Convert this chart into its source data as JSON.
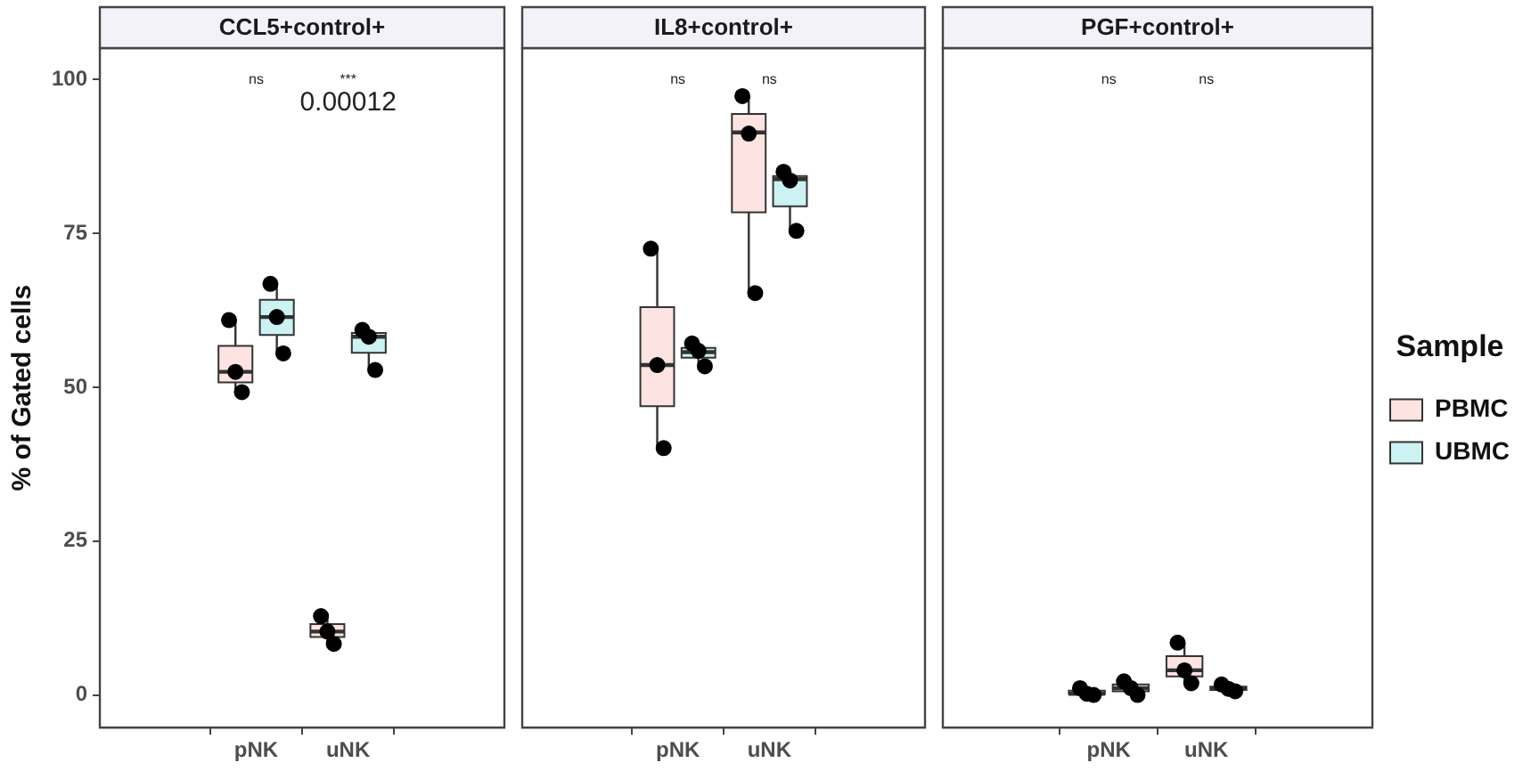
{
  "chart_data": [
    {
      "type": "box",
      "title": "CCL5+control+",
      "ylabel": "% of Gated cells",
      "categories": [
        "pNK",
        "uNK"
      ],
      "ylim": [
        -5.3,
        105.1
      ],
      "yticks": [
        0,
        25,
        50,
        75,
        100
      ],
      "grid": false,
      "marker": "circle",
      "annotations": [
        "ns",
        "***",
        "0.00012"
      ],
      "series": [
        {
          "color": "#fde3e1",
          "boxes": [
            {
              "low": 49.2,
              "q1": 50.8,
              "median": 52.5,
              "q3": 56.7,
              "high": 60.9
            },
            {
              "low": 8.3,
              "q1": 9.4,
              "median": 10.3,
              "q3": 11.5,
              "high": 12.8
            }
          ]
        },
        {
          "color": "#ccf2f3",
          "boxes": [
            {
              "low": 55.5,
              "q1": 58.5,
              "median": 61.4,
              "q3": 64.2,
              "high": 66.8
            },
            {
              "low": 52.8,
              "q1": 55.6,
              "median": 58.2,
              "q3": 58.8,
              "high": 59.3
            }
          ]
        },
        {
          "type": "scatter",
          "color": "#000000",
          "x": [
            "pNK",
            "pNK",
            "pNK",
            "uNK",
            "uNK",
            "uNK"
          ],
          "values": [
            60.9,
            52.5,
            49.2,
            12.8,
            10.3,
            8.3
          ]
        },
        {
          "type": "scatter",
          "color": "#000000",
          "x": [
            "pNK",
            "pNK",
            "pNK",
            "uNK",
            "uNK",
            "uNK"
          ],
          "values": [
            66.8,
            61.4,
            55.5,
            59.3,
            58.2,
            52.8
          ]
        }
      ]
    },
    {
      "type": "box",
      "title": "IL8+control+",
      "categories": [
        "pNK",
        "uNK"
      ],
      "ylim": [
        -5.3,
        105.1
      ],
      "yticks": [
        0,
        25,
        50,
        75,
        100
      ],
      "tick_labels": "x",
      "grid": false,
      "marker": "circle",
      "annotations": [
        "ns",
        "ns"
      ],
      "series": [
        {
          "color": "#fde3e1",
          "boxes": [
            {
              "low": 40.1,
              "q1": 46.9,
              "median": 53.6,
              "q3": 63.0,
              "high": 72.5
            },
            {
              "low": 65.3,
              "q1": 78.4,
              "median": 91.4,
              "q3": 94.4,
              "high": 97.3
            }
          ]
        },
        {
          "color": "#ccf2f3",
          "boxes": [
            {
              "low": 53.4,
              "q1": 54.8,
              "median": 55.7,
              "q3": 56.4,
              "high": 57.1
            },
            {
              "low": 75.4,
              "q1": 79.4,
              "median": 83.8,
              "q3": 84.3,
              "high": 85.0
            }
          ]
        },
        {
          "type": "scatter",
          "color": "#000000",
          "x": [
            "pNK",
            "pNK",
            "pNK",
            "uNK",
            "uNK",
            "uNK"
          ],
          "values": [
            72.5,
            53.6,
            40.1,
            97.3,
            91.2,
            65.3
          ]
        },
        {
          "type": "scatter",
          "color": "#000000",
          "x": [
            "pNK",
            "pNK",
            "pNK",
            "uNK",
            "uNK",
            "uNK"
          ],
          "values": [
            57.1,
            55.9,
            53.4,
            85.0,
            83.6,
            75.4
          ]
        }
      ]
    },
    {
      "type": "box",
      "title": "PGF+control+",
      "categories": [
        "pNK",
        "uNK"
      ],
      "ylim": [
        -5.3,
        105.1
      ],
      "yticks": [
        0,
        25,
        50,
        75,
        100
      ],
      "tick_labels": "x",
      "grid": false,
      "marker": "circle",
      "legend": "right",
      "legend_title": "Sample",
      "annotations": [
        "ns",
        "ns"
      ],
      "series": [
        {
          "name": "PBMC",
          "color": "#fde3e1",
          "boxes": [
            {
              "low": 0,
              "q1": 0.1,
              "median": 0.2,
              "q3": 0.7,
              "high": 1.1
            },
            {
              "low": 1.9,
              "q1": 3.0,
              "median": 4.0,
              "q3": 6.3,
              "high": 8.5
            }
          ]
        },
        {
          "name": "UBMC",
          "color": "#ccf2f3",
          "boxes": [
            {
              "low": 0,
              "q1": 0.6,
              "median": 1.1,
              "q3": 1.7,
              "high": 2.2
            },
            {
              "low": 0.6,
              "q1": 0.8,
              "median": 1.0,
              "q3": 1.35,
              "high": 1.7
            }
          ]
        },
        {
          "type": "scatter",
          "color": "#000000",
          "x": [
            "pNK",
            "pNK",
            "pNK",
            "uNK",
            "uNK",
            "uNK"
          ],
          "values": [
            1.1,
            0.2,
            0,
            8.5,
            4.0,
            1.9
          ]
        },
        {
          "type": "scatter",
          "color": "#000000",
          "x": [
            "pNK",
            "pNK",
            "pNK",
            "uNK",
            "uNK",
            "uNK"
          ],
          "values": [
            2.2,
            1.1,
            0,
            1.7,
            1.0,
            0.6
          ]
        }
      ]
    }
  ]
}
